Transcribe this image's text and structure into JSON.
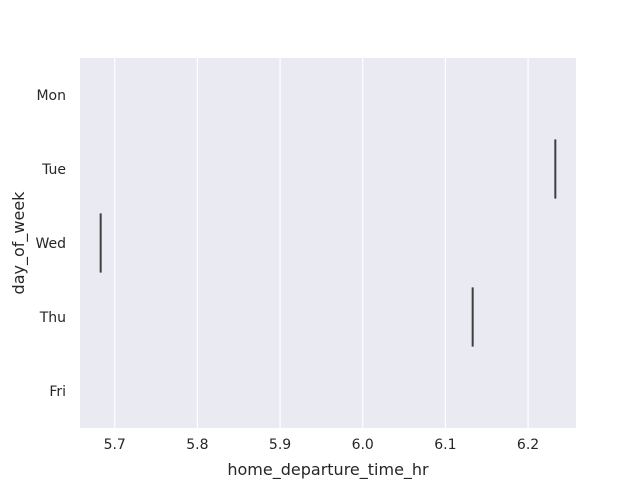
{
  "chart_data": {
    "type": "box",
    "orientation": "horizontal",
    "xlabel": "home_departure_time_hr",
    "ylabel": "day_of_week",
    "categories": [
      "Mon",
      "Tue",
      "Wed",
      "Thu",
      "Fri"
    ],
    "x_ticks": [
      "5.7",
      "5.8",
      "5.9",
      "6.0",
      "6.1",
      "6.2"
    ],
    "xlim": [
      5.658,
      6.258
    ],
    "values": [
      null,
      6.233,
      5.683,
      6.133,
      null
    ],
    "grid": true,
    "colors": {
      "background": "#eaeaf2",
      "grid": "#ffffff",
      "mark": "#3f3f3f",
      "text": "#262626"
    }
  }
}
